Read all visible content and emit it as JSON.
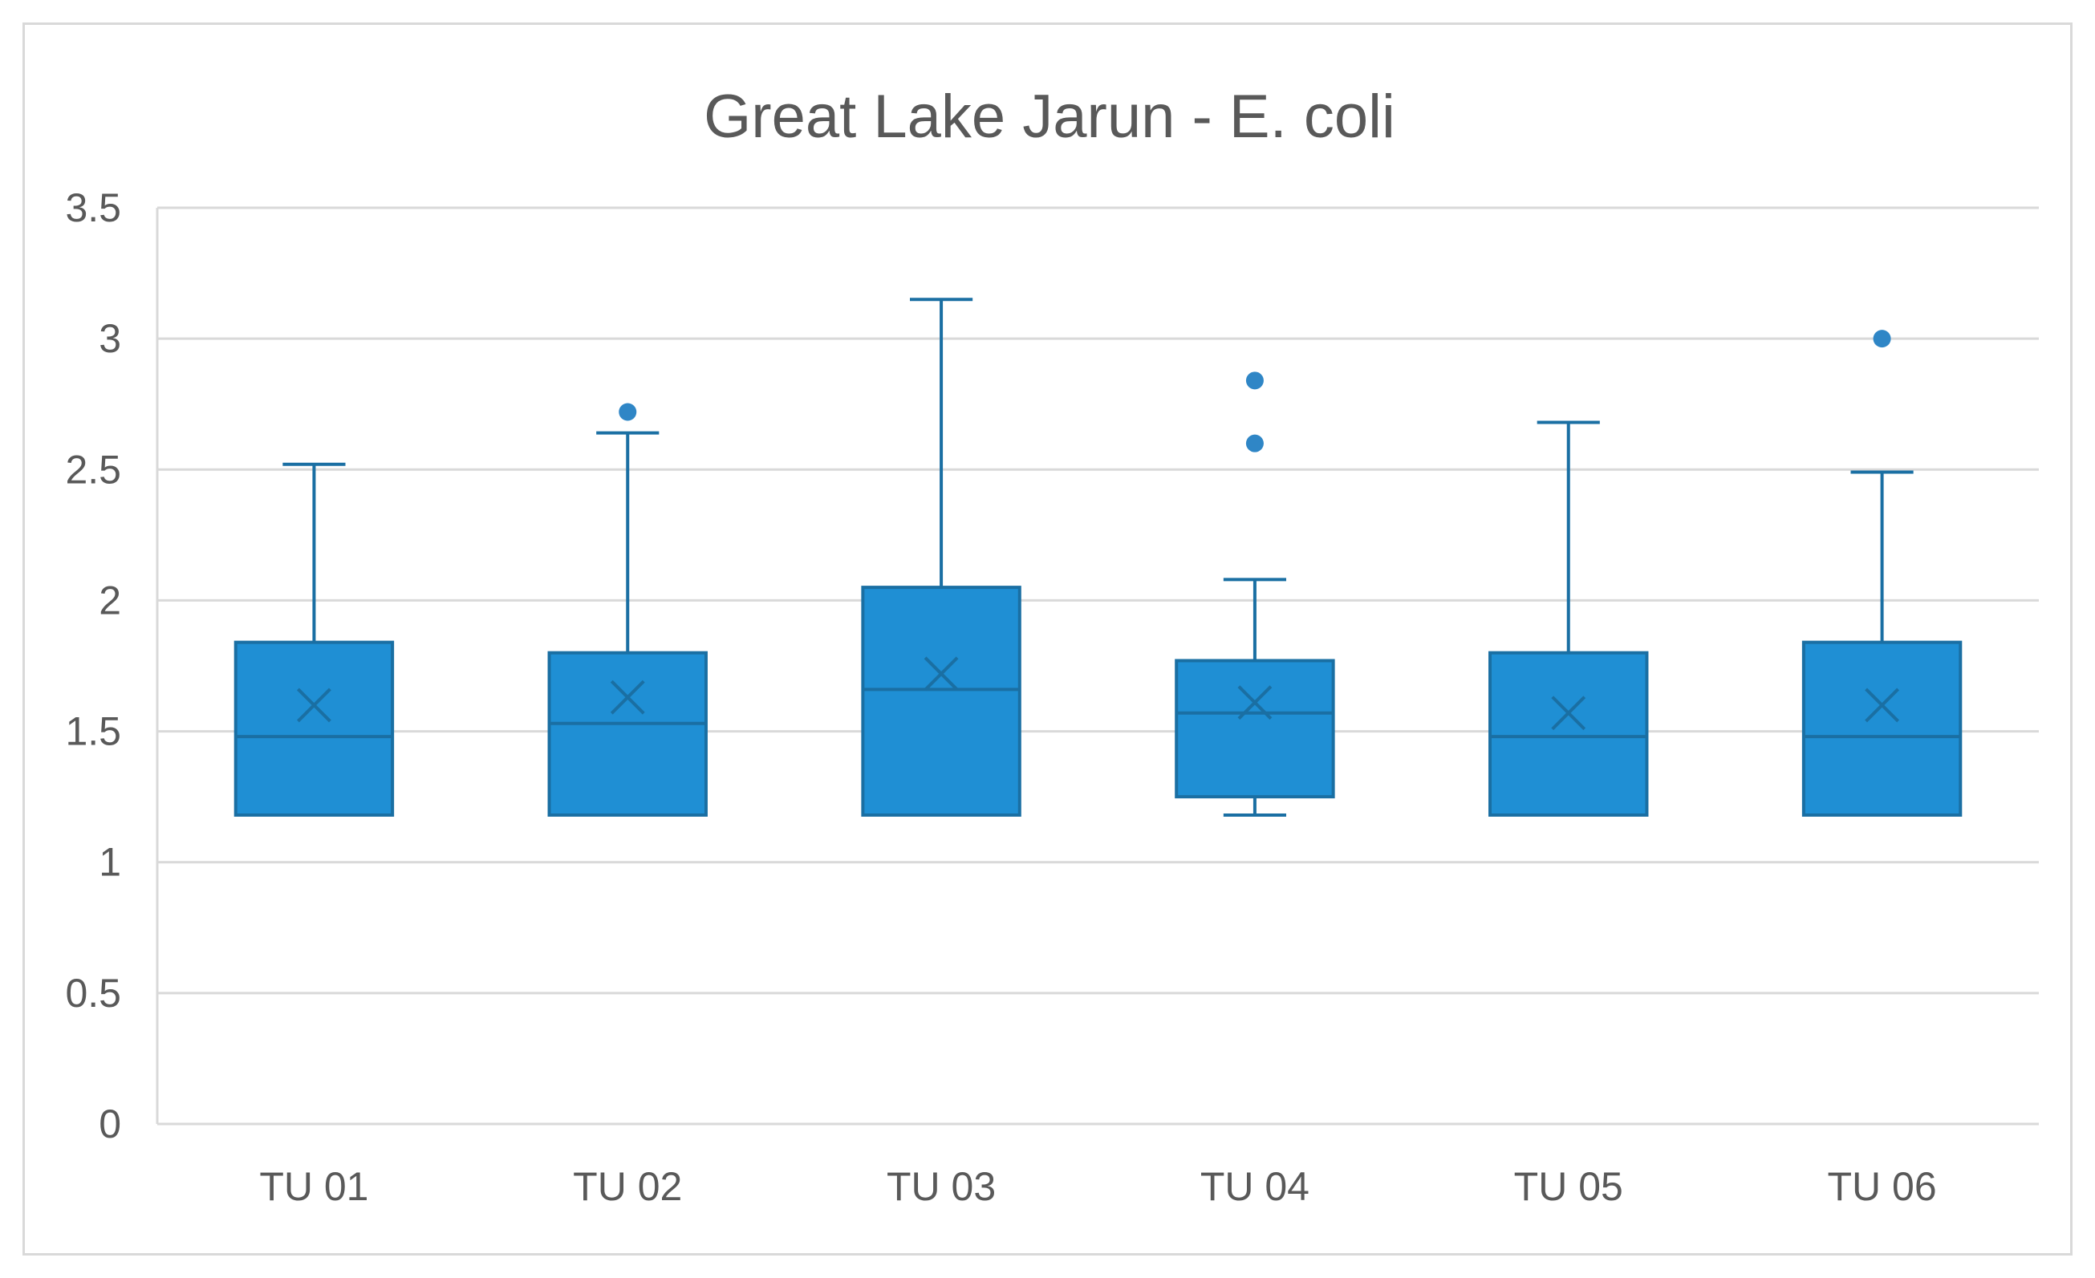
{
  "chart_data": {
    "type": "box",
    "title": "Great Lake Jarun - E. coli",
    "xlabel": "",
    "ylabel": "",
    "ylim": [
      0,
      3.5
    ],
    "yticks": [
      "0",
      "0.5",
      "1",
      "1.5",
      "2",
      "2.5",
      "3",
      "3.5"
    ],
    "grid": true,
    "legend": "none",
    "color": "#1f8fd4",
    "categories": [
      "TU 01",
      "TU 02",
      "TU 03",
      "TU 04",
      "TU 05",
      "TU 06"
    ],
    "boxes": [
      {
        "name": "TU 01",
        "min": 1.18,
        "q1": 1.18,
        "median": 1.48,
        "mean": 1.6,
        "q3": 1.84,
        "max": 2.52,
        "outliers": []
      },
      {
        "name": "TU 02",
        "min": 1.18,
        "q1": 1.18,
        "median": 1.53,
        "mean": 1.63,
        "q3": 1.8,
        "max": 2.64,
        "outliers": [
          2.72
        ]
      },
      {
        "name": "TU 03",
        "min": 1.18,
        "q1": 1.18,
        "median": 1.66,
        "mean": 1.72,
        "q3": 2.05,
        "max": 3.15,
        "outliers": []
      },
      {
        "name": "TU 04",
        "min": 1.18,
        "q1": 1.25,
        "median": 1.57,
        "mean": 1.61,
        "q3": 1.77,
        "max": 2.08,
        "outliers": [
          2.6,
          2.84
        ]
      },
      {
        "name": "TU 05",
        "min": 1.18,
        "q1": 1.18,
        "median": 1.48,
        "mean": 1.57,
        "q3": 1.8,
        "max": 2.68,
        "outliers": []
      },
      {
        "name": "TU 06",
        "min": 1.18,
        "q1": 1.18,
        "median": 1.48,
        "mean": 1.6,
        "q3": 1.84,
        "max": 2.49,
        "outliers": [
          3.0
        ]
      }
    ]
  }
}
